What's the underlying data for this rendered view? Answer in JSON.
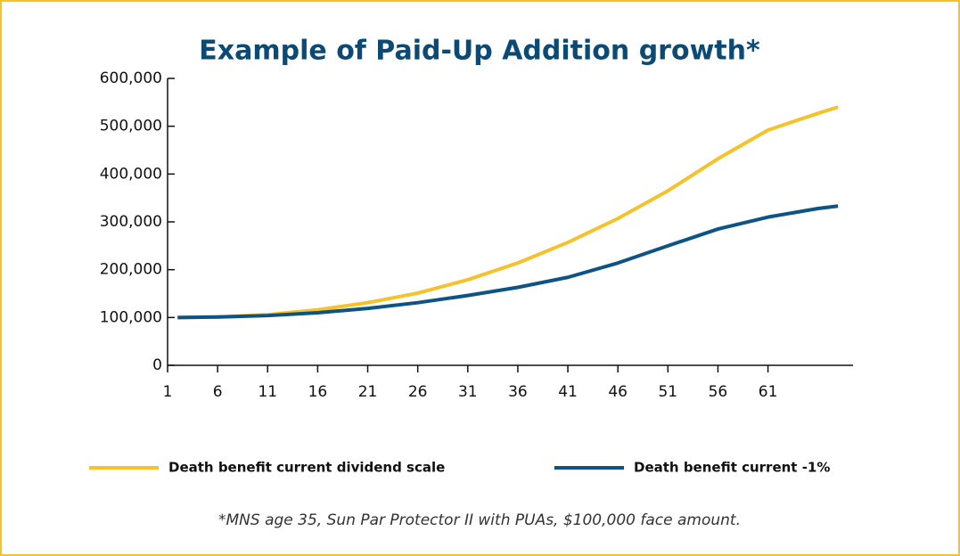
{
  "chart_data": {
    "type": "line",
    "title": "Example of Paid-Up Addition growth*",
    "footnote": "*MNS age 35, Sun Par Protector II with PUAs, $100,000 face amount.",
    "x": [
      2,
      6,
      11,
      16,
      21,
      26,
      31,
      36,
      41,
      46,
      51,
      56,
      61,
      66,
      68
    ],
    "series": [
      {
        "name": "Death benefit current dividend scale",
        "color": "#f5c22b",
        "values": [
          100000,
          101000,
          106000,
          116000,
          131000,
          151000,
          179000,
          214000,
          257000,
          307000,
          365000,
          432000,
          492000,
          527000,
          540000
        ]
      },
      {
        "name": "Death benefit current -1%",
        "color": "#0d5384",
        "values": [
          100000,
          101000,
          104000,
          110000,
          119000,
          131000,
          146000,
          163000,
          184000,
          214000,
          250000,
          285000,
          310000,
          328000,
          333000
        ]
      }
    ],
    "xlim": [
      1,
      69.5
    ],
    "xticks": [
      1,
      6,
      11,
      16,
      21,
      26,
      31,
      36,
      41,
      46,
      51,
      56,
      61
    ],
    "ylim": [
      0,
      600000
    ],
    "yticks": [
      0,
      {
        "value": 100000,
        "label": "100,000"
      },
      {
        "value": 200000,
        "label": "200,000"
      },
      {
        "value": 300000,
        "label": "300,000"
      },
      {
        "value": 400000,
        "label": "400,000"
      },
      {
        "value": 500000,
        "label": "500,000"
      },
      {
        "value": 600000,
        "label": "600,000"
      }
    ],
    "grid": false
  }
}
